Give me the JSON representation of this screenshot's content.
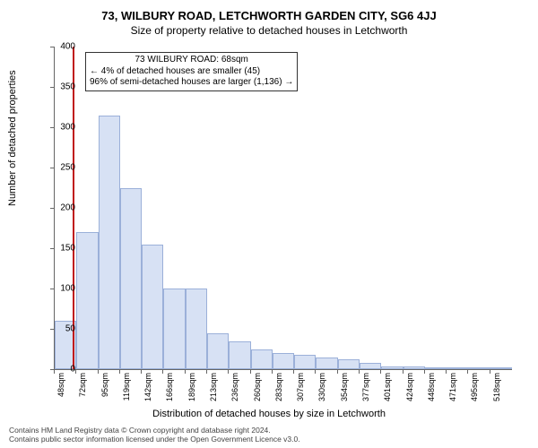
{
  "title": "73, WILBURY ROAD, LETCHWORTH GARDEN CITY, SG6 4JJ",
  "subtitle": "Size of property relative to detached houses in Letchworth",
  "chart": {
    "type": "histogram",
    "ylabel": "Number of detached properties",
    "xlabel": "Distribution of detached houses by size in Letchworth",
    "ylim": [
      0,
      400
    ],
    "ytick_step": 50,
    "yticks": [
      0,
      50,
      100,
      150,
      200,
      250,
      300,
      350,
      400
    ],
    "xticks": [
      "48sqm",
      "72sqm",
      "95sqm",
      "119sqm",
      "142sqm",
      "166sqm",
      "189sqm",
      "213sqm",
      "236sqm",
      "260sqm",
      "283sqm",
      "307sqm",
      "330sqm",
      "354sqm",
      "377sqm",
      "401sqm",
      "424sqm",
      "448sqm",
      "471sqm",
      "495sqm",
      "518sqm"
    ],
    "values": [
      60,
      170,
      315,
      225,
      155,
      100,
      100,
      45,
      35,
      25,
      20,
      18,
      15,
      12,
      8,
      3,
      3,
      2,
      2,
      2,
      2
    ],
    "bar_fill": "#d7e1f4",
    "bar_border": "#9bb0d9",
    "background": "#ffffff",
    "axis_color": "#666666",
    "marker_value_sqm": 68,
    "marker_color": "#c01818",
    "marker_width": 2,
    "annotation": {
      "line1": "73 WILBURY ROAD: 68sqm",
      "line2": "← 4% of detached houses are smaller (45)",
      "line3": "96% of semi-detached houses are larger (1,136) →",
      "border_color": "#333333",
      "background": "#ffffff",
      "fontsize": 10
    }
  },
  "footer": {
    "line1": "Contains HM Land Registry data © Crown copyright and database right 2024.",
    "line2": "Contains public sector information licensed under the Open Government Licence v3.0."
  }
}
